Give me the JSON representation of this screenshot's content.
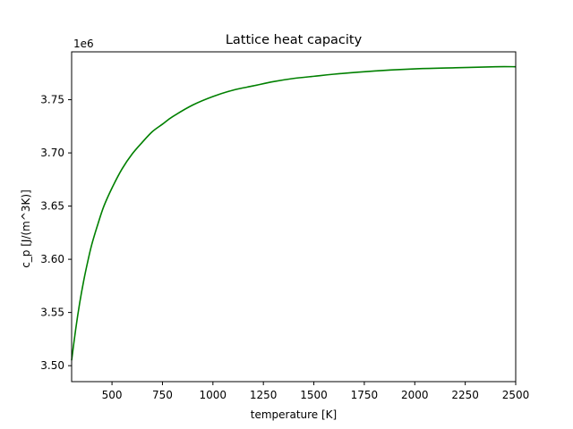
{
  "chart_data": {
    "type": "line",
    "title": "Lattice heat capacity",
    "xlabel": "temperature [K]",
    "ylabel": "c_p [J/(m^3K)]",
    "y_offset_label": "1e6",
    "xlim": [
      300,
      2500
    ],
    "ylim": [
      3.485,
      3.795
    ],
    "y_scale_multiplier": 1000000,
    "grid": false,
    "legend": "none",
    "x_ticks": [
      500,
      750,
      1000,
      1250,
      1500,
      1750,
      2000,
      2250,
      2500
    ],
    "x_tick_labels": [
      "500",
      "750",
      "1000",
      "1250",
      "1500",
      "1750",
      "2000",
      "2250",
      "2500"
    ],
    "y_ticks": [
      3.5,
      3.55,
      3.6,
      3.65,
      3.7,
      3.75
    ],
    "y_tick_labels": [
      "3.50",
      "3.55",
      "3.60",
      "3.65",
      "3.70",
      "3.75"
    ],
    "series": [
      {
        "color": "#008000",
        "x": [
          300,
          320,
          340,
          360,
          380,
          400,
          430,
          460,
          500,
          550,
          600,
          650,
          700,
          750,
          800,
          900,
          1000,
          1100,
          1200,
          1300,
          1400,
          1500,
          1600,
          1800,
          2000,
          2200,
          2400,
          2500
        ],
        "y": [
          3.505,
          3.534,
          3.559,
          3.58,
          3.598,
          3.614,
          3.633,
          3.65,
          3.667,
          3.685,
          3.699,
          3.71,
          3.72,
          3.727,
          3.734,
          3.745,
          3.753,
          3.759,
          3.763,
          3.767,
          3.77,
          3.772,
          3.774,
          3.777,
          3.779,
          3.78,
          3.781,
          3.781
        ]
      }
    ]
  }
}
